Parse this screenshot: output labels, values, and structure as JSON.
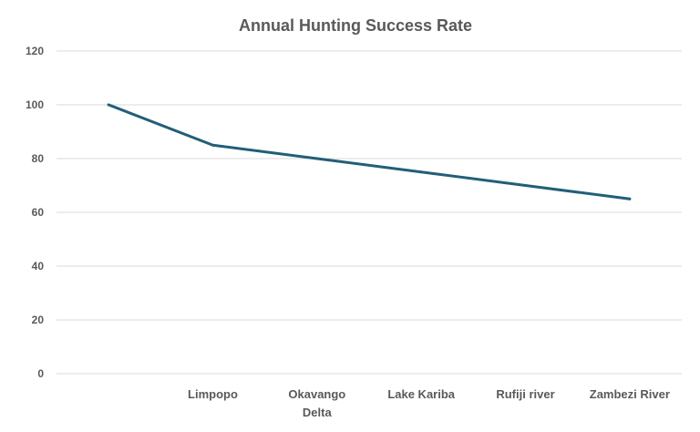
{
  "chart_data": {
    "type": "line",
    "title": "Annual Hunting Success Rate",
    "xlabel": "",
    "ylabel": "",
    "categories": [
      "",
      "Limpopo",
      "Okavango Delta",
      "Lake Kariba",
      "Rufiji river",
      "Zambezi River"
    ],
    "values": [
      100,
      85,
      80,
      75,
      70,
      65
    ],
    "ylim": [
      0,
      120
    ],
    "yticks": [
      0,
      20,
      40,
      60,
      80,
      100,
      120
    ],
    "grid": true,
    "legend": "none",
    "line_color": "#215f78",
    "grid_color": "#d9d9d9"
  }
}
